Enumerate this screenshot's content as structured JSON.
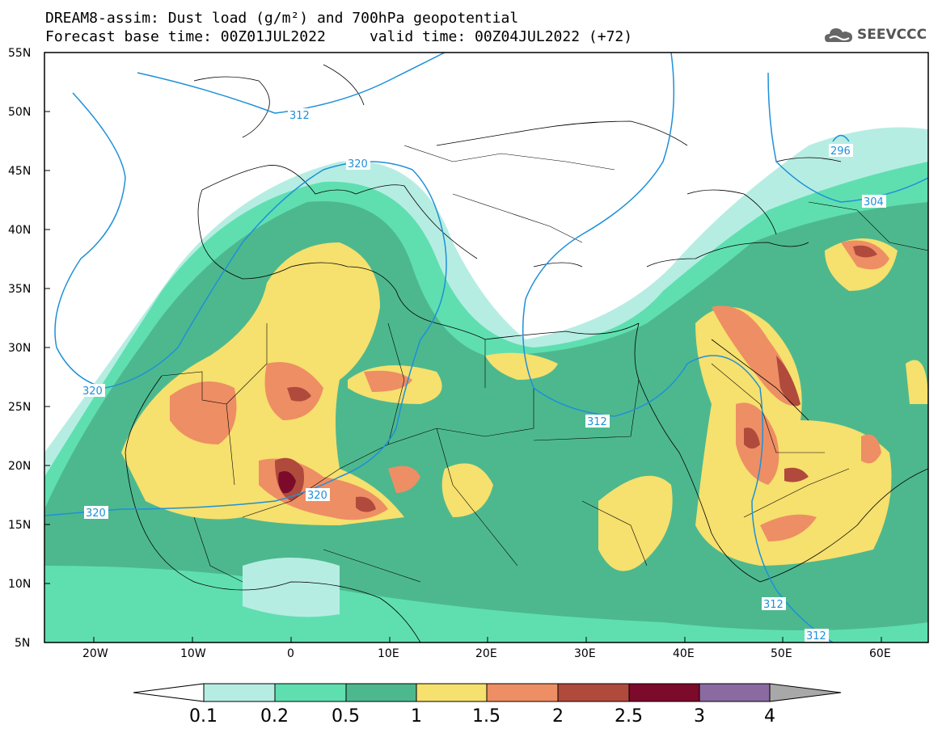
{
  "header": {
    "title_line1": "DREAM8-assim: Dust load (g/m²) and 700hPa geopotential",
    "title_line2": "Forecast base time: 00Z01JUL2022     valid time: 00Z04JUL2022 (+72)",
    "logo_text": "SEEVCCC"
  },
  "axes": {
    "lat_labels": [
      "55N",
      "50N",
      "45N",
      "40N",
      "35N",
      "30N",
      "25N",
      "20N",
      "15N",
      "10N",
      "5N"
    ],
    "lon_labels": [
      "20W",
      "10W",
      "0",
      "10E",
      "20E",
      "30E",
      "40E",
      "50E",
      "60E"
    ]
  },
  "contour_labels": [
    "312",
    "320",
    "296",
    "304",
    "320",
    "320",
    "320",
    "312",
    "312",
    "312"
  ],
  "colorbar": {
    "labels": [
      "0.1",
      "0.2",
      "0.5",
      "1",
      "1.5",
      "2",
      "2.5",
      "3",
      "4"
    ],
    "colors": [
      "#ffffff",
      "#b6ede3",
      "#5fdfb0",
      "#4db88e",
      "#f6e06e",
      "#ee8e64",
      "#b04a3c",
      "#7c0a2a",
      "#8a6aa0",
      "#a8a8a8"
    ]
  },
  "colors": {
    "contour": "#1e90d8",
    "land_border": "#000000"
  }
}
